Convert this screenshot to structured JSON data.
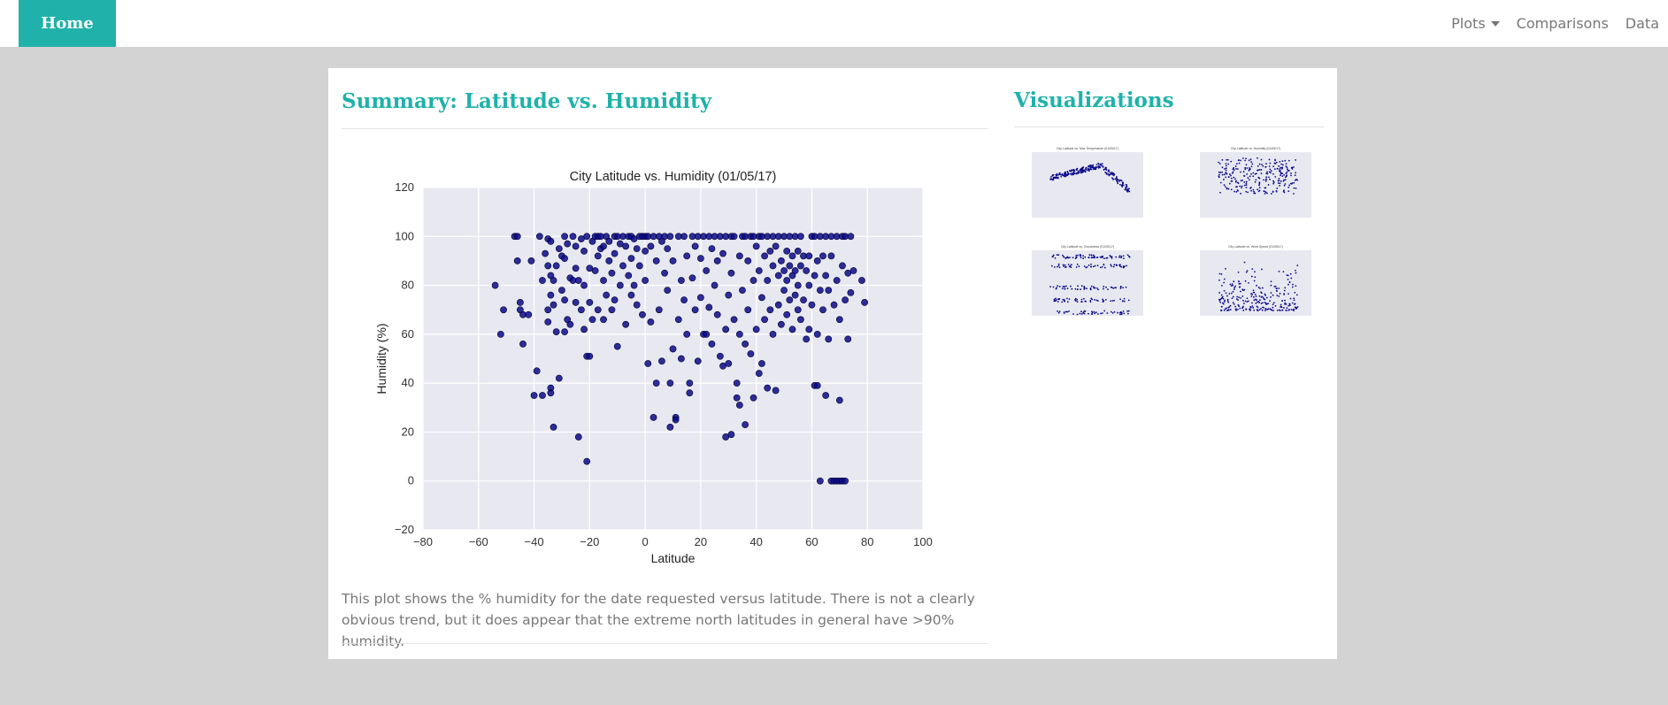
{
  "nav": {
    "brand": "Home",
    "links": [
      {
        "label": "Plots",
        "dropdown": true
      },
      {
        "label": "Comparisons"
      },
      {
        "label": "Data"
      }
    ]
  },
  "summary": {
    "heading": "Summary: Latitude vs. Humidity",
    "description": "This plot shows the % humidity for the date requested versus latitude. There is not a clearly obvious trend, but it does appear that the extreme north latitudes in general have >90% humidity."
  },
  "visualizations": {
    "heading": "Visualizations",
    "thumbnails": [
      {
        "title": "City Latitude vs. Max Temperature (01/05/17)"
      },
      {
        "title": "City Latitude vs. Humidity (01/05/17)"
      },
      {
        "title": "City Latitude vs. Cloudiness (01/05/17)"
      },
      {
        "title": "City Latitude vs. Wind Speed (01/05/17)"
      }
    ]
  },
  "colors": {
    "accent": "#20b2aa",
    "point": "#0b0b8a",
    "plot_bg": "#e8e8f1"
  },
  "chart_data": {
    "type": "scatter",
    "title": "City Latitude vs. Humidity (01/05/17)",
    "xlabel": "Latitude",
    "ylabel": "Humidity (%)",
    "xlim": [
      -80,
      100
    ],
    "ylim": [
      -20,
      120
    ],
    "xticks": [
      "−80",
      "−60",
      "−40",
      "−20",
      "0",
      "20",
      "40",
      "60",
      "80",
      "100"
    ],
    "yticks": [
      "−20",
      "0",
      "20",
      "40",
      "60",
      "80",
      "100",
      "120"
    ],
    "grid": true,
    "points": [
      [
        -54,
        80
      ],
      [
        -52,
        60
      ],
      [
        -51,
        70
      ],
      [
        -47,
        100
      ],
      [
        -46,
        100
      ],
      [
        -46,
        90
      ],
      [
        -45,
        73
      ],
      [
        -45,
        70
      ],
      [
        -44,
        68
      ],
      [
        -44,
        56
      ],
      [
        -42,
        68
      ],
      [
        -41,
        90
      ],
      [
        -40,
        35
      ],
      [
        -39,
        45
      ],
      [
        -38,
        100
      ],
      [
        -37,
        82
      ],
      [
        -37,
        35
      ],
      [
        -36,
        93
      ],
      [
        -35,
        99
      ],
      [
        -35,
        88
      ],
      [
        -35,
        70
      ],
      [
        -35,
        65
      ],
      [
        -34,
        98
      ],
      [
        -34,
        84
      ],
      [
        -34,
        76
      ],
      [
        -34,
        38
      ],
      [
        -34,
        36
      ],
      [
        -33,
        22
      ],
      [
        -33,
        82
      ],
      [
        -33,
        72
      ],
      [
        -32,
        88
      ],
      [
        -32,
        61
      ],
      [
        -31,
        42
      ],
      [
        -31,
        95
      ],
      [
        -30,
        92
      ],
      [
        -30,
        78
      ],
      [
        -29,
        100
      ],
      [
        -29,
        91
      ],
      [
        -29,
        74
      ],
      [
        -29,
        61
      ],
      [
        -28,
        97
      ],
      [
        -28,
        66
      ],
      [
        -27,
        83
      ],
      [
        -27,
        64
      ],
      [
        -26,
        100
      ],
      [
        -26,
        82
      ],
      [
        -25,
        96
      ],
      [
        -25,
        87
      ],
      [
        -25,
        73
      ],
      [
        -24,
        18
      ],
      [
        -24,
        82
      ],
      [
        -23,
        99
      ],
      [
        -23,
        70
      ],
      [
        -22,
        94
      ],
      [
        -22,
        80
      ],
      [
        -22,
        62
      ],
      [
        -21,
        100
      ],
      [
        -21,
        51
      ],
      [
        -21,
        8
      ],
      [
        -20,
        87
      ],
      [
        -20,
        73
      ],
      [
        -20,
        51
      ],
      [
        -19,
        98
      ],
      [
        -19,
        66
      ],
      [
        -18,
        100
      ],
      [
        -18,
        86
      ],
      [
        -17,
        100
      ],
      [
        -17,
        92
      ],
      [
        -17,
        70
      ],
      [
        -16,
        100
      ],
      [
        -16,
        95
      ],
      [
        -15,
        96
      ],
      [
        -15,
        82
      ],
      [
        -15,
        66
      ],
      [
        -14,
        100
      ],
      [
        -14,
        76
      ],
      [
        -13,
        98
      ],
      [
        -13,
        90
      ],
      [
        -12,
        85
      ],
      [
        -12,
        70
      ],
      [
        -11,
        100
      ],
      [
        -11,
        93
      ],
      [
        -11,
        74
      ],
      [
        -10,
        100
      ],
      [
        -10,
        55
      ],
      [
        -9,
        97
      ],
      [
        -9,
        80
      ],
      [
        -8,
        100
      ],
      [
        -8,
        88
      ],
      [
        -7,
        96
      ],
      [
        -7,
        64
      ],
      [
        -6,
        100
      ],
      [
        -6,
        84
      ],
      [
        -5,
        100
      ],
      [
        -5,
        91
      ],
      [
        -5,
        76
      ],
      [
        -4,
        99
      ],
      [
        -4,
        80
      ],
      [
        -3,
        95
      ],
      [
        -3,
        72
      ],
      [
        -2,
        100
      ],
      [
        -2,
        88
      ],
      [
        -1,
        100
      ],
      [
        -1,
        68
      ],
      [
        0,
        100
      ],
      [
        0,
        94
      ],
      [
        0,
        82
      ],
      [
        1,
        100
      ],
      [
        1,
        48
      ],
      [
        2,
        96
      ],
      [
        2,
        65
      ],
      [
        3,
        26
      ],
      [
        3,
        100
      ],
      [
        4,
        90
      ],
      [
        4,
        40
      ],
      [
        5,
        100
      ],
      [
        5,
        70
      ],
      [
        6,
        98
      ],
      [
        6,
        49
      ],
      [
        7,
        100
      ],
      [
        7,
        85
      ],
      [
        8,
        95
      ],
      [
        8,
        78
      ],
      [
        9,
        100
      ],
      [
        9,
        40
      ],
      [
        9,
        22
      ],
      [
        10,
        90
      ],
      [
        10,
        54
      ],
      [
        11,
        26
      ],
      [
        11,
        25
      ],
      [
        12,
        100
      ],
      [
        12,
        66
      ],
      [
        13,
        82
      ],
      [
        13,
        50
      ],
      [
        14,
        100
      ],
      [
        14,
        74
      ],
      [
        15,
        92
      ],
      [
        15,
        60
      ],
      [
        16,
        40
      ],
      [
        16,
        36
      ],
      [
        17,
        100
      ],
      [
        17,
        83
      ],
      [
        18,
        96
      ],
      [
        18,
        70
      ],
      [
        19,
        100
      ],
      [
        19,
        49
      ],
      [
        20,
        75
      ],
      [
        20,
        91
      ],
      [
        21,
        100
      ],
      [
        21,
        60
      ],
      [
        22,
        86
      ],
      [
        22,
        60
      ],
      [
        23,
        100
      ],
      [
        23,
        71
      ],
      [
        24,
        95
      ],
      [
        24,
        56
      ],
      [
        25,
        100
      ],
      [
        25,
        80
      ],
      [
        26,
        90
      ],
      [
        26,
        68
      ],
      [
        27,
        100
      ],
      [
        27,
        51
      ],
      [
        28,
        93
      ],
      [
        28,
        47
      ],
      [
        29,
        100
      ],
      [
        29,
        18
      ],
      [
        29,
        62
      ],
      [
        30,
        76
      ],
      [
        30,
        48
      ],
      [
        31,
        100
      ],
      [
        31,
        19
      ],
      [
        31,
        85
      ],
      [
        32,
        100
      ],
      [
        32,
        66
      ],
      [
        33,
        40
      ],
      [
        33,
        34
      ],
      [
        34,
        92
      ],
      [
        34,
        60
      ],
      [
        34,
        31
      ],
      [
        35,
        100
      ],
      [
        35,
        78
      ],
      [
        36,
        100
      ],
      [
        36,
        23
      ],
      [
        36,
        56
      ],
      [
        37,
        90
      ],
      [
        37,
        70
      ],
      [
        38,
        100
      ],
      [
        38,
        52
      ],
      [
        39,
        100
      ],
      [
        39,
        34
      ],
      [
        39,
        82
      ],
      [
        40,
        96
      ],
      [
        40,
        62
      ],
      [
        41,
        100
      ],
      [
        41,
        86
      ],
      [
        41,
        44
      ],
      [
        42,
        100
      ],
      [
        42,
        75
      ],
      [
        42,
        48
      ],
      [
        43,
        92
      ],
      [
        43,
        66
      ],
      [
        44,
        100
      ],
      [
        44,
        82
      ],
      [
        44,
        38
      ],
      [
        45,
        94
      ],
      [
        45,
        70
      ],
      [
        46,
        100
      ],
      [
        46,
        88
      ],
      [
        46,
        60
      ],
      [
        47,
        96
      ],
      [
        47,
        37
      ],
      [
        48,
        100
      ],
      [
        48,
        84
      ],
      [
        48,
        72
      ],
      [
        49,
        90
      ],
      [
        49,
        64
      ],
      [
        50,
        100
      ],
      [
        50,
        86
      ],
      [
        50,
        78
      ],
      [
        51,
        94
      ],
      [
        51,
        82
      ],
      [
        51,
        68
      ],
      [
        52,
        100
      ],
      [
        52,
        88
      ],
      [
        52,
        74
      ],
      [
        53,
        92
      ],
      [
        53,
        84
      ],
      [
        53,
        62
      ],
      [
        54,
        100
      ],
      [
        54,
        86
      ],
      [
        54,
        76
      ],
      [
        55,
        94
      ],
      [
        55,
        80
      ],
      [
        55,
        70
      ],
      [
        56,
        100
      ],
      [
        56,
        88
      ],
      [
        56,
        66
      ],
      [
        57,
        92
      ],
      [
        57,
        74
      ],
      [
        58,
        86
      ],
      [
        58,
        58
      ],
      [
        59,
        92
      ],
      [
        59,
        80
      ],
      [
        59,
        62
      ],
      [
        60,
        100
      ],
      [
        60,
        72
      ],
      [
        61,
        100
      ],
      [
        61,
        84
      ],
      [
        61,
        39
      ],
      [
        62,
        90
      ],
      [
        62,
        60
      ],
      [
        62,
        39
      ],
      [
        63,
        100
      ],
      [
        63,
        0
      ],
      [
        63,
        78
      ],
      [
        64,
        92
      ],
      [
        64,
        70
      ],
      [
        65,
        100
      ],
      [
        65,
        35
      ],
      [
        65,
        84
      ],
      [
        66,
        78
      ],
      [
        66,
        58
      ],
      [
        67,
        100
      ],
      [
        67,
        0
      ],
      [
        67,
        92
      ],
      [
        68,
        0
      ],
      [
        68,
        72
      ],
      [
        69,
        100
      ],
      [
        69,
        0
      ],
      [
        69,
        82
      ],
      [
        70,
        33
      ],
      [
        70,
        0
      ],
      [
        70,
        66
      ],
      [
        71,
        100
      ],
      [
        71,
        0
      ],
      [
        71,
        88
      ],
      [
        72,
        100
      ],
      [
        72,
        0
      ],
      [
        72,
        74
      ],
      [
        73,
        85
      ],
      [
        73,
        58
      ],
      [
        74,
        100
      ],
      [
        74,
        77
      ],
      [
        75,
        86
      ],
      [
        78,
        82
      ],
      [
        79,
        73
      ]
    ]
  }
}
